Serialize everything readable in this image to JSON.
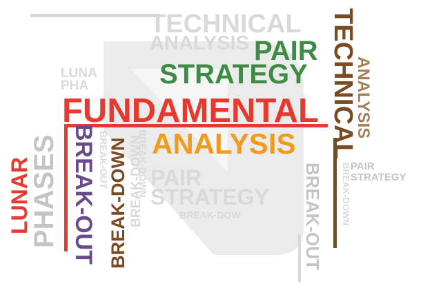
{
  "colors": {
    "red": "#e8392f",
    "green": "#3d8b45",
    "orange": "#f39a1a",
    "brown": "#7a4a22",
    "tan": "#a47e55",
    "purple": "#6a4a8a",
    "gray_light": "#d9d9d9",
    "gray_mid": "#c4c4c4",
    "logo_gray": "#ebebeb"
  },
  "words": {
    "technical_top": "TECHNICAL",
    "analysis_top": "ANALYSIS",
    "pair": "PAIR",
    "strategy_green": "STRATEGY",
    "luna": "LUNA",
    "pha": "PHA",
    "fundamental": "FUNDAMENTAL",
    "analysis_orange": "ANALYSIS",
    "technical_vertical": "TECHNICAL",
    "analysis_vertical": "ANALYSIS",
    "phases": "PHASES",
    "lunar": "LUNAR",
    "break_out_purple": "BREAK-OUT",
    "break_down_brown": "BREAK-DOWN",
    "break_down_gray": "BREAK-DOWN",
    "break_out_gray_small": "BREAK-OUT",
    "break_down_gray_small": "BREAK-DOWN",
    "pair_gray": "PAIR",
    "strategy_gray": "STRATEGY",
    "break_dow_gray": "BREAK-DOW",
    "break_out_gray_right": "BREAK-OUT",
    "break_down_gray_right": "BREAK-DOWN",
    "pair_right": "PAIR",
    "strategy_right": "STRATEGY"
  }
}
